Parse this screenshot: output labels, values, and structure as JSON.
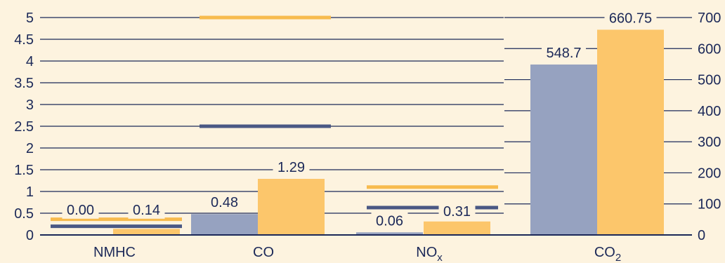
{
  "colors": {
    "background": "#FDF3DF",
    "text": "#1B2858",
    "axis": "#1B2858",
    "grid": "#1B2858",
    "series_1_bar": "#96A2C0",
    "series_2_bar": "#FCC66B",
    "series_1_limit": "#4A5884",
    "series_2_limit": "#F7BB4E"
  },
  "chart_data": {
    "type": "bar",
    "title": "",
    "xlabel": "",
    "ylabel": "",
    "categories": [
      "NMHC",
      "CO",
      "NO",
      "CO"
    ],
    "category_subscripts": [
      "",
      "",
      "x",
      "2"
    ],
    "category_axis": [
      "left",
      "left",
      "left",
      "right"
    ],
    "series": [
      {
        "values": [
          0.0,
          0.48,
          0.06,
          548.7
        ],
        "labels": [
          "0.00",
          "0.48",
          "0.06",
          "548.7"
        ]
      },
      {
        "values": [
          0.14,
          1.29,
          0.31,
          660.75
        ],
        "labels": [
          "0.14",
          "1.29",
          "0.31",
          "660.75"
        ]
      }
    ],
    "limits": [
      {
        "category": "NMHC",
        "series": 1,
        "value": 0.2
      },
      {
        "category": "NMHC",
        "series": 2,
        "value": 0.36
      },
      {
        "category": "CO",
        "series": 1,
        "value": 2.5
      },
      {
        "category": "CO",
        "series": 2,
        "value": 5.0
      },
      {
        "category": "NO",
        "series": 1,
        "value": 0.63
      },
      {
        "category": "NO",
        "series": 2,
        "value": 1.1
      }
    ],
    "y_left": {
      "min": 0,
      "max": 5,
      "ticks": [
        "0",
        "0.5",
        "1",
        "1.5",
        "2",
        "2.5",
        "3",
        "3.5",
        "4",
        "4.5",
        "5"
      ]
    },
    "y_right": {
      "min": 0,
      "max": 700,
      "ticks": [
        "0",
        "100",
        "200",
        "300",
        "400",
        "500",
        "600",
        "700"
      ]
    },
    "grid": true,
    "legend": "none"
  }
}
